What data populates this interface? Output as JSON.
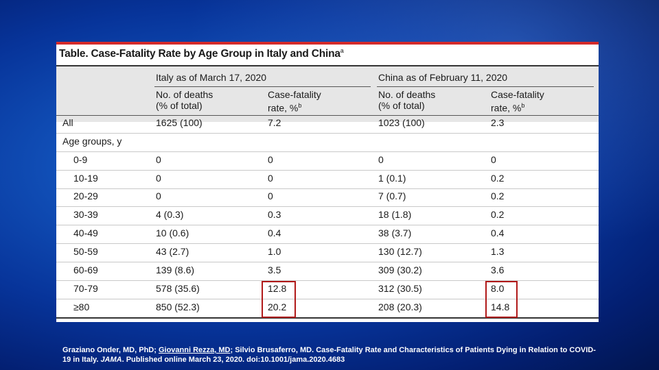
{
  "table": {
    "title": "Table. Case-Fatality Rate by Age Group in Italy and China",
    "title_sup": "a",
    "italy_header": "Italy as of March 17, 2020",
    "china_header": "China as of February 11, 2020",
    "col_deaths_line1": "No. of deaths",
    "col_deaths_line2": "(% of total)",
    "col_rate_line1": "Case-fatality",
    "col_rate_line2": "rate, %",
    "col_rate_sup": "b",
    "all_row": {
      "label": "All",
      "italy_deaths": "1625 (100)",
      "italy_rate": "7.2",
      "china_deaths": "1023 (100)",
      "china_rate": "2.3"
    },
    "age_groups_label": "Age groups, y",
    "rows": [
      {
        "label": "0-9",
        "italy_deaths": "0",
        "italy_rate": "0",
        "china_deaths": "0",
        "china_rate": "0"
      },
      {
        "label": "10-19",
        "italy_deaths": "0",
        "italy_rate": "0",
        "china_deaths": "1 (0.1)",
        "china_rate": "0.2"
      },
      {
        "label": "20-29",
        "italy_deaths": "0",
        "italy_rate": "0",
        "china_deaths": "7 (0.7)",
        "china_rate": "0.2"
      },
      {
        "label": "30-39",
        "italy_deaths": "4 (0.3)",
        "italy_rate": "0.3",
        "china_deaths": "18 (1.8)",
        "china_rate": "0.2"
      },
      {
        "label": "40-49",
        "italy_deaths": "10 (0.6)",
        "italy_rate": "0.4",
        "china_deaths": "38 (3.7)",
        "china_rate": "0.4"
      },
      {
        "label": "50-59",
        "italy_deaths": "43 (2.7)",
        "italy_rate": "1.0",
        "china_deaths": "130 (12.7)",
        "china_rate": "1.3"
      },
      {
        "label": "60-69",
        "italy_deaths": "139 (8.6)",
        "italy_rate": "3.5",
        "china_deaths": "309 (30.2)",
        "china_rate": "3.6"
      },
      {
        "label": "70-79",
        "italy_deaths": "578 (35.6)",
        "italy_rate": "12.8",
        "china_deaths": "312 (30.5)",
        "china_rate": "8.0"
      },
      {
        "label": "≥80",
        "italy_deaths": "850 (52.3)",
        "italy_rate": "20.2",
        "china_deaths": "208 (20.3)",
        "china_rate": "14.8"
      }
    ]
  },
  "citation": {
    "authors_a": "Graziano Onder, MD, PhD; ",
    "author_link": "Giovanni Rezza, MD",
    "authors_b": "; Silvio Brusaferro, MD. Case-Fatality Rate and Characteristics of Patients Dying in Relation to COVID-19 in Italy. ",
    "journal": "JAMA",
    "tail": ". Published online March 23, 2020. doi:10.1001/jama.2020.4683"
  },
  "colors": {
    "highlight_box": "#b01818",
    "title_bar": "#d42a2a"
  }
}
